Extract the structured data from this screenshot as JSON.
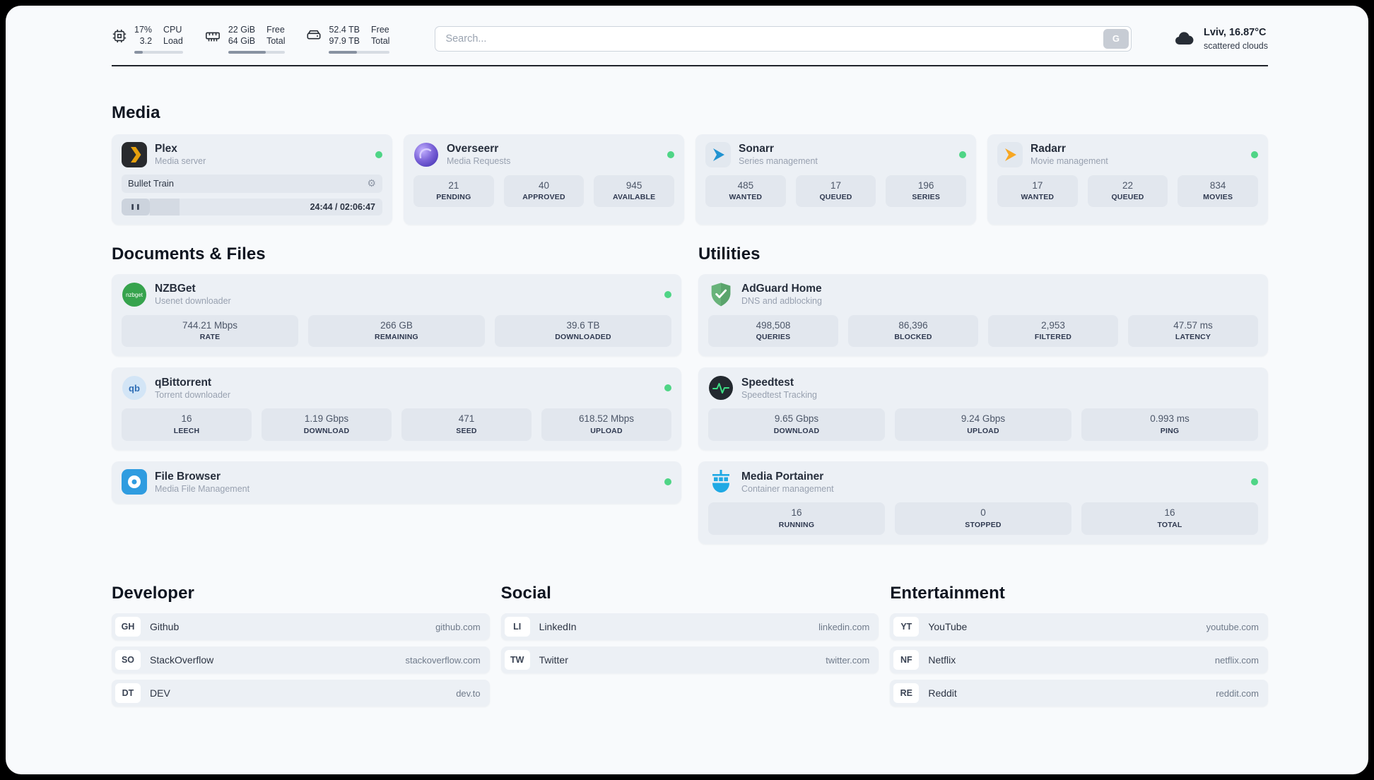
{
  "colors": {
    "status_online": "#4fd586",
    "page_bg": "#f8fafc",
    "card_bg": "#ecf0f5",
    "plex_yellow": "#e5a00d",
    "sonarr_blue": "#2193d1",
    "radarr_orange": "#f7a723",
    "adguard_green": "#68b37a",
    "portainer_blue": "#1fa9e4"
  },
  "icons": {
    "gear": "⚙",
    "pause": "❚❚"
  },
  "topbar": {
    "cpu": {
      "line1": "17%",
      "line2": "3.2",
      "label_line1": "CPU",
      "label_line2": "Load",
      "progress": 17
    },
    "memory": {
      "line1": "22 GiB",
      "line2": "64 GiB",
      "label_line1": "Free",
      "label_line2": "Total",
      "progress": 66
    },
    "disk": {
      "line1": "52.4 TB",
      "line2": "97.9 TB",
      "label_line1": "Free",
      "label_line2": "Total",
      "progress": 46
    },
    "search": {
      "placeholder": "Search...",
      "button_label": "G"
    },
    "weather": {
      "location": "Lviv, 16.87°C",
      "condition": "scattered clouds"
    }
  },
  "sections": {
    "media": {
      "title": "Media",
      "cards": [
        {
          "name": "Plex",
          "subtitle": "Media server",
          "now_playing": {
            "title": "Bullet Train",
            "time": "24:44 / 02:06:47",
            "progress": 19.5
          }
        },
        {
          "name": "Overseerr",
          "subtitle": "Media Requests",
          "stats": [
            {
              "value": "21",
              "label": "PENDING"
            },
            {
              "value": "40",
              "label": "APPROVED"
            },
            {
              "value": "945",
              "label": "AVAILABLE"
            }
          ]
        },
        {
          "name": "Sonarr",
          "subtitle": "Series management",
          "stats": [
            {
              "value": "485",
              "label": "WANTED"
            },
            {
              "value": "17",
              "label": "QUEUED"
            },
            {
              "value": "196",
              "label": "SERIES"
            }
          ]
        },
        {
          "name": "Radarr",
          "subtitle": "Movie management",
          "stats": [
            {
              "value": "17",
              "label": "WANTED"
            },
            {
              "value": "22",
              "label": "QUEUED"
            },
            {
              "value": "834",
              "label": "MOVIES"
            }
          ]
        }
      ]
    },
    "documents": {
      "title": "Documents & Files",
      "cards": [
        {
          "name": "NZBGet",
          "subtitle": "Usenet downloader",
          "stats": [
            {
              "value": "744.21 Mbps",
              "label": "RATE"
            },
            {
              "value": "266 GB",
              "label": "REMAINING"
            },
            {
              "value": "39.6 TB",
              "label": "DOWNLOADED"
            }
          ]
        },
        {
          "name": "qBittorrent",
          "subtitle": "Torrent downloader",
          "stats": [
            {
              "value": "16",
              "label": "LEECH"
            },
            {
              "value": "1.19 Gbps",
              "label": "DOWNLOAD"
            },
            {
              "value": "471",
              "label": "SEED"
            },
            {
              "value": "618.52 Mbps",
              "label": "UPLOAD"
            }
          ]
        },
        {
          "name": "File Browser",
          "subtitle": "Media File Management"
        }
      ]
    },
    "utilities": {
      "title": "Utilities",
      "cards": [
        {
          "name": "AdGuard Home",
          "subtitle": "DNS and adblocking",
          "stats": [
            {
              "value": "498,508",
              "label": "QUERIES"
            },
            {
              "value": "86,396",
              "label": "BLOCKED"
            },
            {
              "value": "2,953",
              "label": "FILTERED"
            },
            {
              "value": "47.57 ms",
              "label": "LATENCY"
            }
          ]
        },
        {
          "name": "Speedtest",
          "subtitle": "Speedtest Tracking",
          "stats": [
            {
              "value": "9.65 Gbps",
              "label": "DOWNLOAD"
            },
            {
              "value": "9.24 Gbps",
              "label": "UPLOAD"
            },
            {
              "value": "0.993 ms",
              "label": "PING"
            }
          ]
        },
        {
          "name": "Media Portainer",
          "subtitle": "Container management",
          "stats": [
            {
              "value": "16",
              "label": "RUNNING"
            },
            {
              "value": "0",
              "label": "STOPPED"
            },
            {
              "value": "16",
              "label": "TOTAL"
            }
          ]
        }
      ]
    },
    "developer": {
      "title": "Developer",
      "links": [
        {
          "abbr": "GH",
          "name": "Github",
          "url": "github.com"
        },
        {
          "abbr": "SO",
          "name": "StackOverflow",
          "url": "stackoverflow.com"
        },
        {
          "abbr": "DT",
          "name": "DEV",
          "url": "dev.to"
        }
      ]
    },
    "social": {
      "title": "Social",
      "links": [
        {
          "abbr": "LI",
          "name": "LinkedIn",
          "url": "linkedin.com"
        },
        {
          "abbr": "TW",
          "name": "Twitter",
          "url": "twitter.com"
        }
      ]
    },
    "entertainment": {
      "title": "Entertainment",
      "links": [
        {
          "abbr": "YT",
          "name": "YouTube",
          "url": "youtube.com"
        },
        {
          "abbr": "NF",
          "name": "Netflix",
          "url": "netflix.com"
        },
        {
          "abbr": "RE",
          "name": "Reddit",
          "url": "reddit.com"
        }
      ]
    }
  }
}
